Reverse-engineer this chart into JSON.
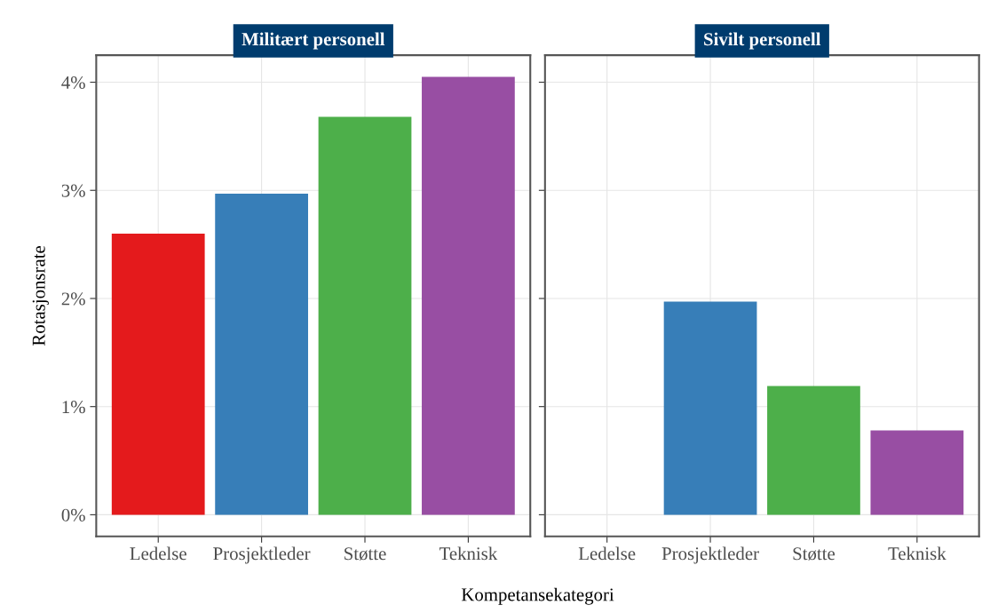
{
  "chart_data": [
    {
      "type": "bar",
      "title": "Militært personell",
      "ylabel": "Rotasjonsrate",
      "xlabel": "Kompetansekategori",
      "categories": [
        "Ledelse",
        "Prosjektleder",
        "Støtte",
        "Teknisk"
      ],
      "values": [
        2.6,
        2.97,
        3.68,
        4.05
      ],
      "colors": [
        "#e41a1c",
        "#377eb8",
        "#4daf4a",
        "#984ea3"
      ],
      "ylim": [
        -0.2,
        4.25
      ],
      "yticks": [
        {
          "value": 0,
          "label": "0%"
        },
        {
          "value": 1,
          "label": "1%"
        },
        {
          "value": 2,
          "label": "2%"
        },
        {
          "value": 3,
          "label": "3%"
        },
        {
          "value": 4,
          "label": "4%"
        }
      ],
      "grid": true,
      "legend": false
    },
    {
      "type": "bar",
      "title": "Sivilt personell",
      "categories": [
        "Ledelse",
        "Prosjektleder",
        "Støtte",
        "Teknisk"
      ],
      "values": [
        0,
        1.97,
        1.19,
        0.78
      ],
      "colors": [
        "#e41a1c",
        "#377eb8",
        "#4daf4a",
        "#984ea3"
      ],
      "ylim": [
        -0.2,
        4.25
      ],
      "yticks": [
        {
          "value": 0,
          "label": null
        },
        {
          "value": 1,
          "label": null
        },
        {
          "value": 2,
          "label": null
        },
        {
          "value": 3,
          "label": null
        },
        {
          "value": 4,
          "label": null
        }
      ],
      "grid": true,
      "legend": false,
      "tick_labels": "x"
    }
  ]
}
